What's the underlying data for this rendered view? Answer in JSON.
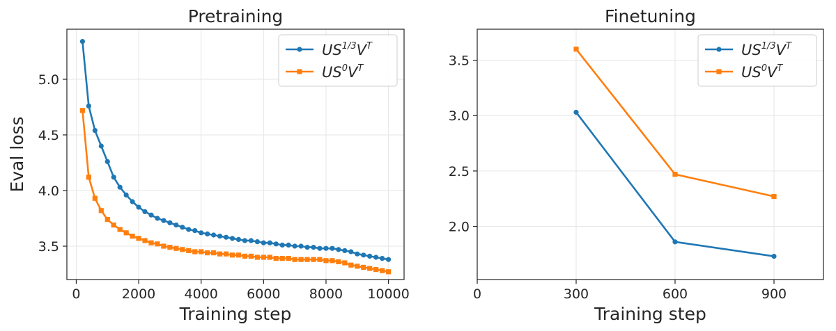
{
  "chart_data": [
    {
      "type": "line",
      "title": "Pretraining",
      "xlabel": "Training step",
      "ylabel": "Eval loss",
      "xlim": [
        -300,
        10500
      ],
      "ylim": [
        3.2,
        5.45
      ],
      "xticks": [
        0,
        2000,
        4000,
        6000,
        8000,
        10000
      ],
      "xtick_labels": [
        "0",
        "2000",
        "4000",
        "6000",
        "8000",
        "10000"
      ],
      "yticks": [
        3.5,
        4.0,
        4.5,
        5.0
      ],
      "ytick_labels": [
        "3.5",
        "4.0",
        "4.5",
        "5.0"
      ],
      "grid": true,
      "legend_position": "top-right",
      "series": [
        {
          "name": "US^{1/3}V^T",
          "name_parts": {
            "base": "US",
            "sup": "1/3",
            "mid": "V",
            "sup2": "T"
          },
          "color": "#1f77b4",
          "marker": "circle",
          "x": [
            200,
            400,
            600,
            800,
            1000,
            1200,
            1400,
            1600,
            1800,
            2000,
            2200,
            2400,
            2600,
            2800,
            3000,
            3200,
            3400,
            3600,
            3800,
            4000,
            4200,
            4400,
            4600,
            4800,
            5000,
            5200,
            5400,
            5600,
            5800,
            6000,
            6200,
            6400,
            6600,
            6800,
            7000,
            7200,
            7400,
            7600,
            7800,
            8000,
            8200,
            8400,
            8600,
            8800,
            9000,
            9200,
            9400,
            9600,
            9800,
            10000
          ],
          "y": [
            5.34,
            4.76,
            4.54,
            4.4,
            4.26,
            4.12,
            4.03,
            3.96,
            3.9,
            3.85,
            3.81,
            3.78,
            3.75,
            3.73,
            3.71,
            3.69,
            3.67,
            3.65,
            3.64,
            3.62,
            3.61,
            3.6,
            3.59,
            3.58,
            3.57,
            3.56,
            3.55,
            3.55,
            3.54,
            3.53,
            3.53,
            3.52,
            3.51,
            3.51,
            3.5,
            3.5,
            3.49,
            3.49,
            3.48,
            3.48,
            3.48,
            3.47,
            3.46,
            3.45,
            3.43,
            3.42,
            3.41,
            3.4,
            3.39,
            3.38
          ]
        },
        {
          "name": "US^{0}V^T",
          "name_parts": {
            "base": "US",
            "sup": "0",
            "mid": "V",
            "sup2": "T"
          },
          "color": "#ff7f0e",
          "marker": "square",
          "x": [
            200,
            400,
            600,
            800,
            1000,
            1200,
            1400,
            1600,
            1800,
            2000,
            2200,
            2400,
            2600,
            2800,
            3000,
            3200,
            3400,
            3600,
            3800,
            4000,
            4200,
            4400,
            4600,
            4800,
            5000,
            5200,
            5400,
            5600,
            5800,
            6000,
            6200,
            6400,
            6600,
            6800,
            7000,
            7200,
            7400,
            7600,
            7800,
            8000,
            8200,
            8400,
            8600,
            8800,
            9000,
            9200,
            9400,
            9600,
            9800,
            10000
          ],
          "y": [
            4.72,
            4.12,
            3.93,
            3.82,
            3.74,
            3.69,
            3.65,
            3.62,
            3.59,
            3.57,
            3.55,
            3.53,
            3.52,
            3.5,
            3.49,
            3.48,
            3.47,
            3.46,
            3.45,
            3.45,
            3.44,
            3.44,
            3.43,
            3.43,
            3.42,
            3.42,
            3.41,
            3.41,
            3.4,
            3.4,
            3.4,
            3.39,
            3.39,
            3.39,
            3.38,
            3.38,
            3.38,
            3.38,
            3.38,
            3.37,
            3.37,
            3.36,
            3.35,
            3.33,
            3.32,
            3.31,
            3.3,
            3.29,
            3.28,
            3.27
          ]
        }
      ]
    },
    {
      "type": "line",
      "title": "Finetuning",
      "xlabel": "Training step",
      "ylabel": "",
      "xlim": [
        0,
        1050
      ],
      "ylim": [
        1.52,
        3.78
      ],
      "xticks": [
        0,
        300,
        600,
        900
      ],
      "xtick_labels": [
        "0",
        "300",
        "600",
        "900"
      ],
      "yticks": [
        2.0,
        2.5,
        3.0,
        3.5
      ],
      "ytick_labels": [
        "2.0",
        "2.5",
        "3.0",
        "3.5"
      ],
      "grid": true,
      "legend_position": "top-right",
      "series": [
        {
          "name": "US^{1/3}V^T",
          "name_parts": {
            "base": "US",
            "sup": "1/3",
            "mid": "V",
            "sup2": "T"
          },
          "color": "#1f77b4",
          "marker": "circle",
          "x": [
            300,
            600,
            900
          ],
          "y": [
            3.03,
            1.86,
            1.73
          ]
        },
        {
          "name": "US^{0}V^T",
          "name_parts": {
            "base": "US",
            "sup": "0",
            "mid": "V",
            "sup2": "T"
          },
          "color": "#ff7f0e",
          "marker": "square",
          "x": [
            300,
            600,
            900
          ],
          "y": [
            3.6,
            2.47,
            2.27
          ]
        }
      ]
    }
  ]
}
